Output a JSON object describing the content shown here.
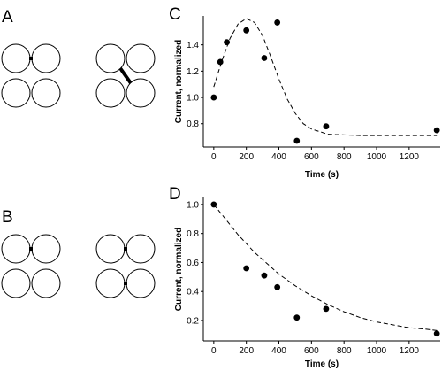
{
  "panels": {
    "A": "A",
    "B": "B",
    "C": "C",
    "D": "D"
  },
  "chart_data": [
    {
      "id": "C",
      "type": "scatter",
      "xlabel": "Time (s)",
      "ylabel": "Current, normalized",
      "xlim": [
        -10,
        1380
      ],
      "ylim": [
        0.65,
        1.62
      ],
      "xticks": [
        0,
        200,
        400,
        600,
        800,
        1000,
        1200
      ],
      "yticks": [
        0.8,
        1.0,
        1.2,
        1.4
      ],
      "points": [
        {
          "x": 0,
          "y": 1.0
        },
        {
          "x": 40,
          "y": 1.27
        },
        {
          "x": 80,
          "y": 1.42
        },
        {
          "x": 200,
          "y": 1.51
        },
        {
          "x": 310,
          "y": 1.3
        },
        {
          "x": 390,
          "y": 1.57
        },
        {
          "x": 510,
          "y": 0.67
        },
        {
          "x": 690,
          "y": 0.78
        },
        {
          "x": 1370,
          "y": 0.75
        }
      ],
      "fit": [
        [
          0,
          1.08
        ],
        [
          50,
          1.28
        ],
        [
          100,
          1.45
        ],
        [
          150,
          1.56
        ],
        [
          200,
          1.6
        ],
        [
          250,
          1.57
        ],
        [
          300,
          1.47
        ],
        [
          350,
          1.31
        ],
        [
          400,
          1.14
        ],
        [
          450,
          0.99
        ],
        [
          500,
          0.88
        ],
        [
          550,
          0.8
        ],
        [
          600,
          0.76
        ],
        [
          650,
          0.74
        ],
        [
          700,
          0.72
        ],
        [
          800,
          0.715
        ],
        [
          900,
          0.71
        ],
        [
          1000,
          0.71
        ],
        [
          1100,
          0.71
        ],
        [
          1200,
          0.71
        ],
        [
          1300,
          0.71
        ],
        [
          1370,
          0.71
        ]
      ]
    },
    {
      "id": "D",
      "type": "scatter",
      "xlabel": "Time (s)",
      "ylabel": "Current, normalized",
      "xlim": [
        -10,
        1380
      ],
      "ylim": [
        0.09,
        1.03
      ],
      "xticks": [
        0,
        200,
        400,
        600,
        800,
        1000,
        1200
      ],
      "yticks": [
        0.2,
        0.4,
        0.6,
        0.8,
        1.0
      ],
      "points": [
        {
          "x": 0,
          "y": 1.0
        },
        {
          "x": 200,
          "y": 0.56
        },
        {
          "x": 310,
          "y": 0.51
        },
        {
          "x": 390,
          "y": 0.43
        },
        {
          "x": 510,
          "y": 0.22
        },
        {
          "x": 690,
          "y": 0.28
        },
        {
          "x": 1370,
          "y": 0.11
        }
      ],
      "fit": [
        [
          0,
          1.0
        ],
        [
          50,
          0.93
        ],
        [
          100,
          0.86
        ],
        [
          150,
          0.79
        ],
        [
          200,
          0.73
        ],
        [
          250,
          0.67
        ],
        [
          300,
          0.62
        ],
        [
          350,
          0.57
        ],
        [
          400,
          0.52
        ],
        [
          450,
          0.48
        ],
        [
          500,
          0.44
        ],
        [
          600,
          0.37
        ],
        [
          700,
          0.31
        ],
        [
          800,
          0.26
        ],
        [
          900,
          0.22
        ],
        [
          1000,
          0.19
        ],
        [
          1100,
          0.17
        ],
        [
          1200,
          0.15
        ],
        [
          1300,
          0.14
        ],
        [
          1370,
          0.13
        ]
      ]
    }
  ]
}
